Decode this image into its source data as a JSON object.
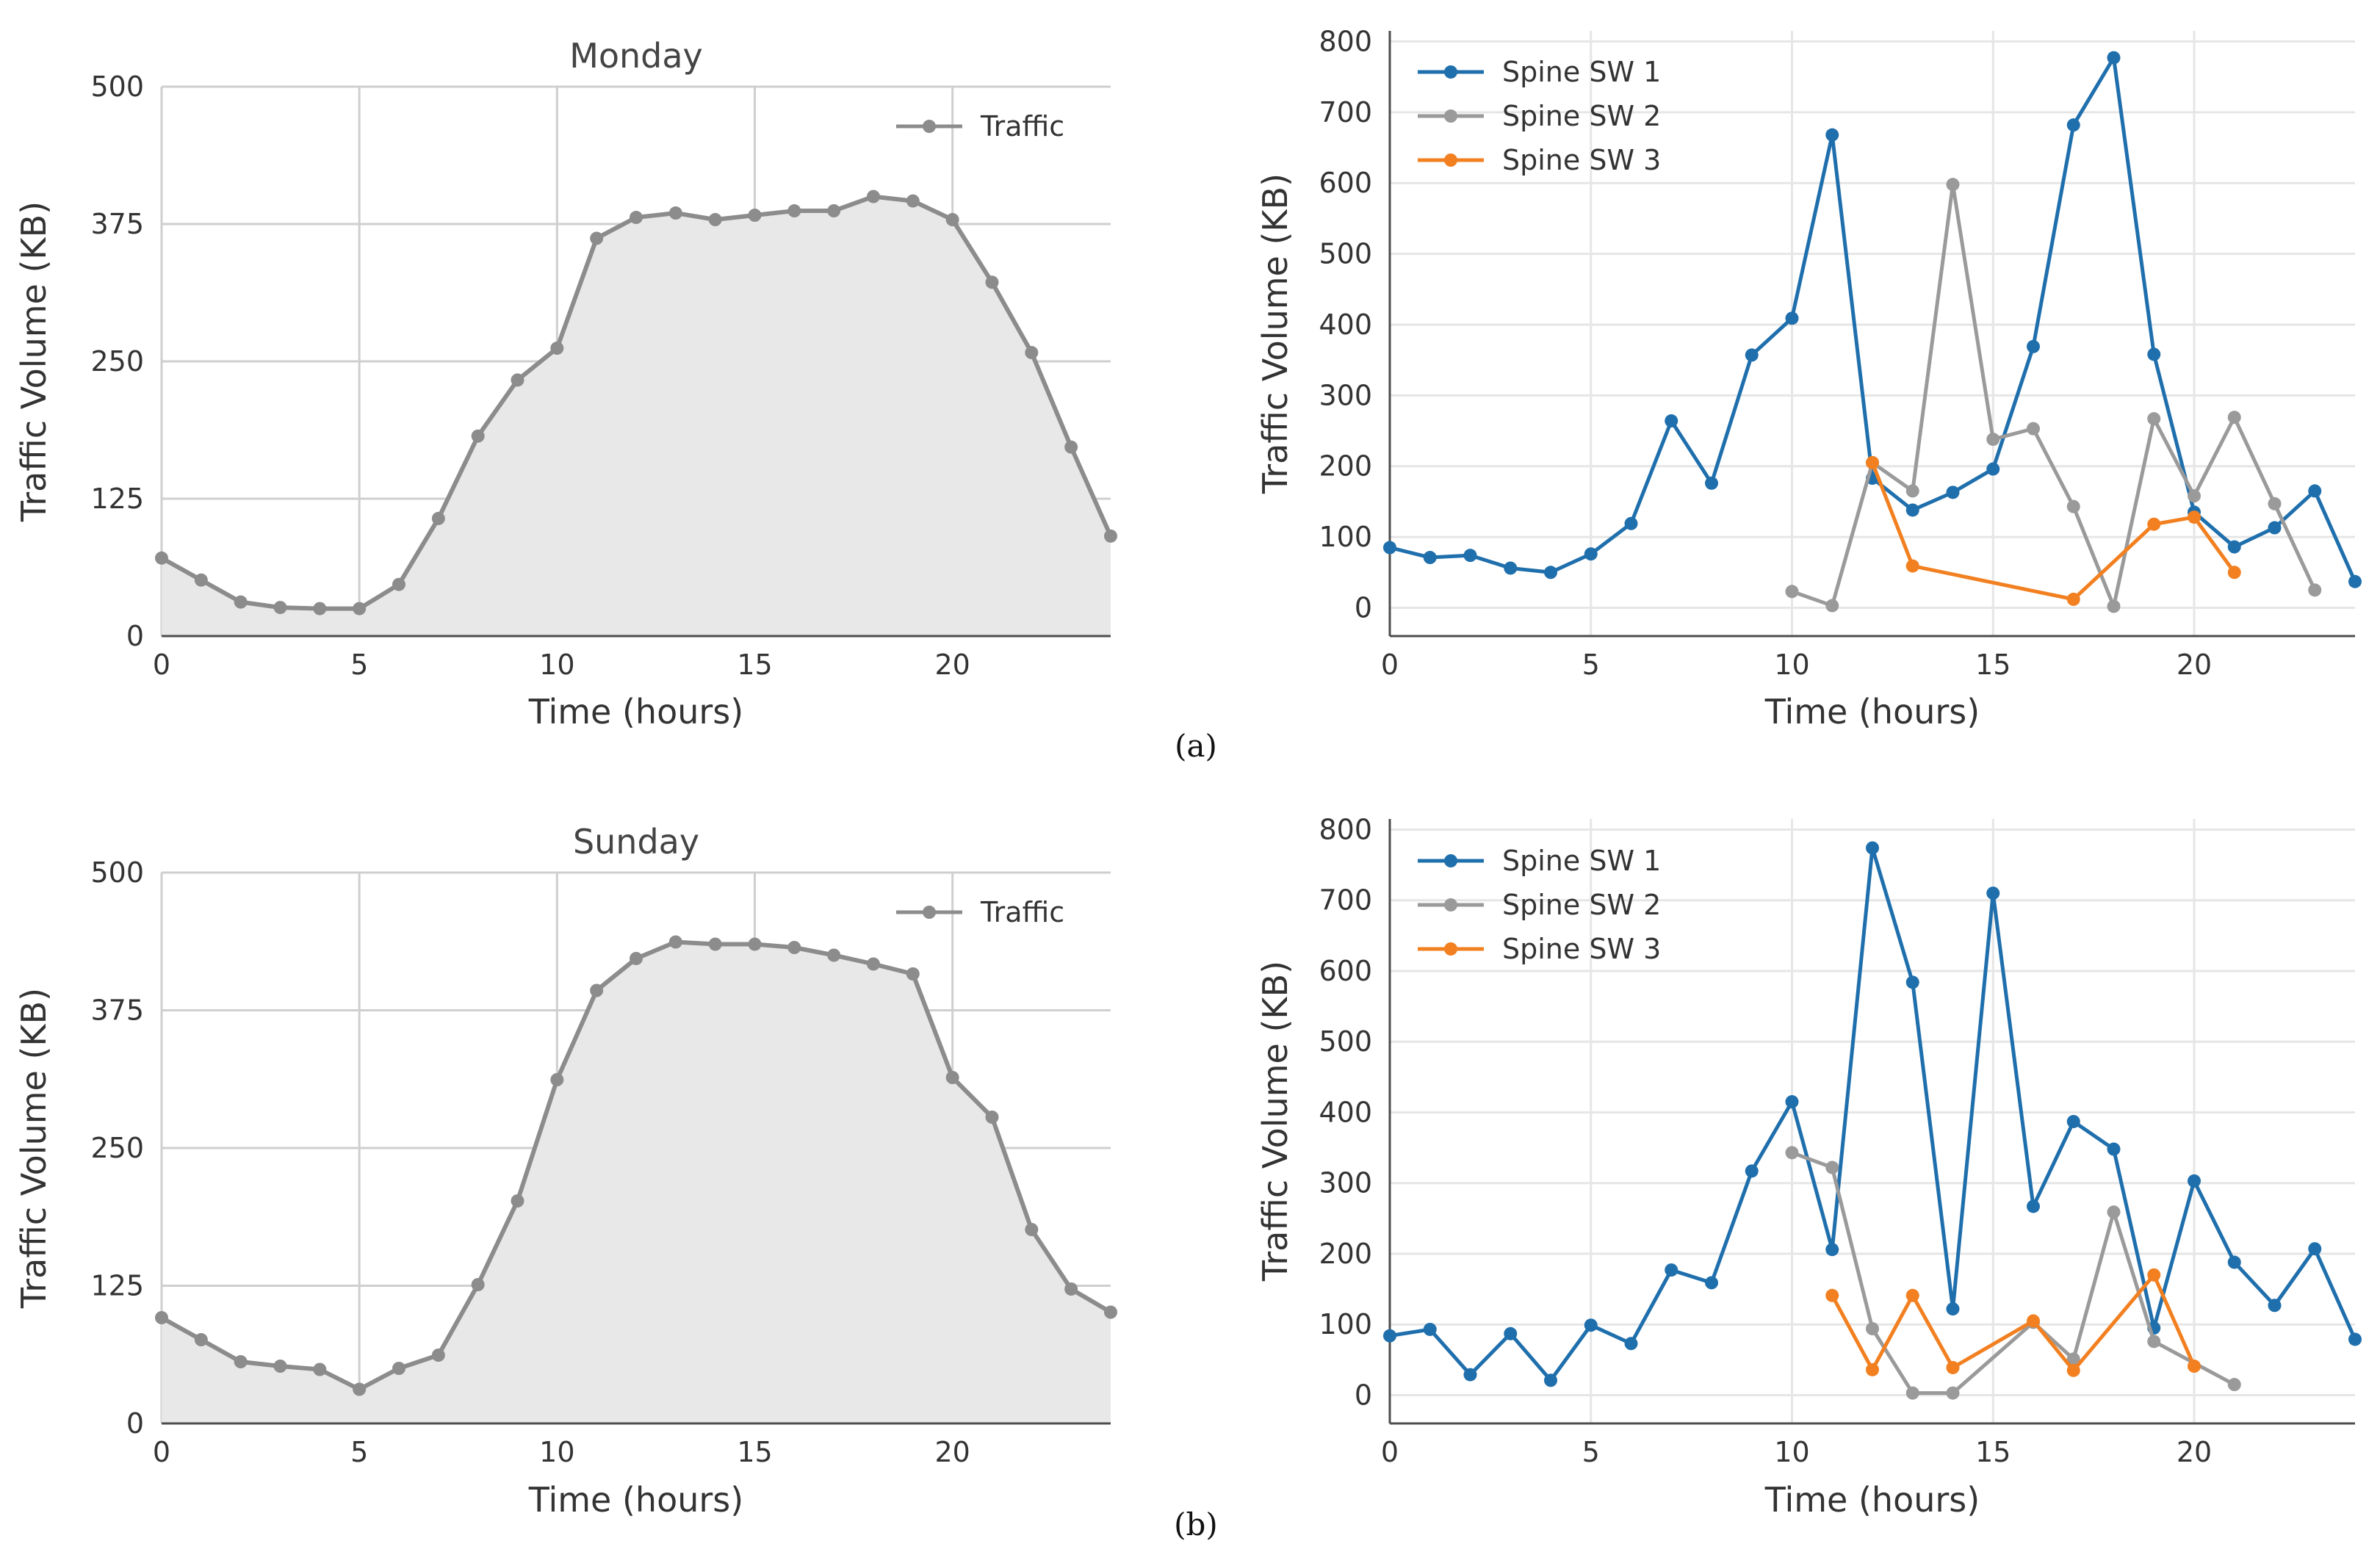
{
  "captions": [
    "(a)",
    "(b)"
  ],
  "chart_data": [
    {
      "id": "monday-traffic",
      "type": "area",
      "title": "Monday",
      "xlabel": "Time (hours)",
      "ylabel": "Traffic Volume (KB)",
      "xlim": [
        0,
        24
      ],
      "ylim": [
        0,
        500
      ],
      "xticks": [
        0,
        5,
        10,
        15,
        20
      ],
      "yticks": [
        0,
        125,
        250,
        375,
        500
      ],
      "grid": true,
      "legend_position": "top-right",
      "series": [
        {
          "name": "Traffic",
          "color": "#8c8c8c",
          "x": [
            0,
            1,
            2,
            3,
            4,
            5,
            6,
            7,
            8,
            9,
            10,
            11,
            12,
            13,
            14,
            15,
            16,
            17,
            18,
            19,
            20,
            21,
            22,
            23,
            24
          ],
          "values": [
            71,
            51,
            31,
            26,
            25,
            25,
            47,
            107,
            182,
            233,
            262,
            362,
            381,
            385,
            379,
            383,
            387,
            387,
            400,
            396,
            379,
            322,
            258,
            172,
            91
          ]
        }
      ]
    },
    {
      "id": "monday-spines",
      "type": "line",
      "title": "",
      "xlabel": "Time (hours)",
      "ylabel": "Traffic Volume (KB)",
      "xlim": [
        0,
        24
      ],
      "ylim": [
        -40,
        815
      ],
      "xticks": [
        0,
        5,
        10,
        15,
        20
      ],
      "yticks": [
        0,
        100,
        200,
        300,
        400,
        500,
        600,
        700,
        800
      ],
      "grid": true,
      "legend_position": "top-left",
      "series": [
        {
          "name": "Spine SW 1",
          "color": "#1f6fad",
          "x": [
            0,
            1,
            2,
            3,
            4,
            5,
            6,
            7,
            8,
            9,
            10,
            11,
            12,
            13,
            14,
            15,
            16,
            17,
            18,
            19,
            20,
            21,
            22,
            23,
            24
          ],
          "values": [
            85,
            71,
            74,
            56,
            50,
            76,
            119,
            264,
            176,
            357,
            409,
            668,
            183,
            138,
            163,
            196,
            369,
            682,
            777,
            358,
            135,
            86,
            113,
            165,
            37
          ]
        },
        {
          "name": "Spine SW 2",
          "color": "#9a9a9a",
          "x": [
            10,
            11,
            12,
            13,
            14,
            15,
            16,
            17,
            18,
            19,
            20,
            21,
            22,
            23
          ],
          "values": [
            23,
            3,
            205,
            165,
            598,
            238,
            253,
            143,
            2,
            267,
            158,
            269,
            147,
            25
          ]
        },
        {
          "name": "Spine SW 3",
          "color": "#f28021",
          "x": [
            12,
            13,
            17,
            19,
            20,
            21
          ],
          "values": [
            205,
            59,
            12,
            118,
            128,
            50
          ]
        }
      ]
    },
    {
      "id": "sunday-traffic",
      "type": "area",
      "title": "Sunday",
      "xlabel": "Time (hours)",
      "ylabel": "Traffic Volume (KB)",
      "xlim": [
        0,
        24
      ],
      "ylim": [
        0,
        500
      ],
      "xticks": [
        0,
        5,
        10,
        15,
        20
      ],
      "yticks": [
        0,
        125,
        250,
        375,
        500
      ],
      "grid": true,
      "legend_position": "top-right",
      "series": [
        {
          "name": "Traffic",
          "color": "#8c8c8c",
          "x": [
            0,
            1,
            2,
            3,
            4,
            5,
            6,
            7,
            8,
            9,
            10,
            11,
            12,
            13,
            14,
            15,
            16,
            17,
            18,
            19,
            20,
            21,
            22,
            23,
            24
          ],
          "values": [
            96,
            76,
            56,
            52,
            49,
            31,
            50,
            62,
            126,
            202,
            312,
            393,
            422,
            437,
            435,
            435,
            432,
            425,
            417,
            408,
            314,
            278,
            176,
            122,
            101
          ]
        }
      ]
    },
    {
      "id": "sunday-spines",
      "type": "line",
      "title": "",
      "xlabel": "Time (hours)",
      "ylabel": "Traffic Volume (KB)",
      "xlim": [
        0,
        24
      ],
      "ylim": [
        -40,
        815
      ],
      "xticks": [
        0,
        5,
        10,
        15,
        20
      ],
      "yticks": [
        0,
        100,
        200,
        300,
        400,
        500,
        600,
        700,
        800
      ],
      "grid": true,
      "legend_position": "top-left",
      "series": [
        {
          "name": "Spine SW 1",
          "color": "#1f6fad",
          "x": [
            0,
            1,
            2,
            3,
            4,
            5,
            6,
            7,
            8,
            9,
            10,
            11,
            12,
            13,
            14,
            15,
            16,
            17,
            18,
            19,
            20,
            21,
            22,
            23,
            24
          ],
          "values": [
            84,
            93,
            29,
            87,
            21,
            99,
            73,
            177,
            159,
            317,
            415,
            206,
            774,
            584,
            122,
            710,
            267,
            387,
            348,
            95,
            303,
            188,
            127,
            207,
            79
          ]
        },
        {
          "name": "Spine SW 2",
          "color": "#9a9a9a",
          "x": [
            10,
            11,
            12,
            13,
            14,
            16,
            17,
            18,
            19,
            21
          ],
          "values": [
            343,
            322,
            94,
            3,
            3,
            103,
            51,
            259,
            76,
            15
          ]
        },
        {
          "name": "Spine SW 3",
          "color": "#f28021",
          "x": [
            11,
            12,
            13,
            14,
            16,
            17,
            19,
            20
          ],
          "values": [
            141,
            36,
            141,
            39,
            105,
            35,
            170,
            41
          ]
        }
      ]
    }
  ]
}
